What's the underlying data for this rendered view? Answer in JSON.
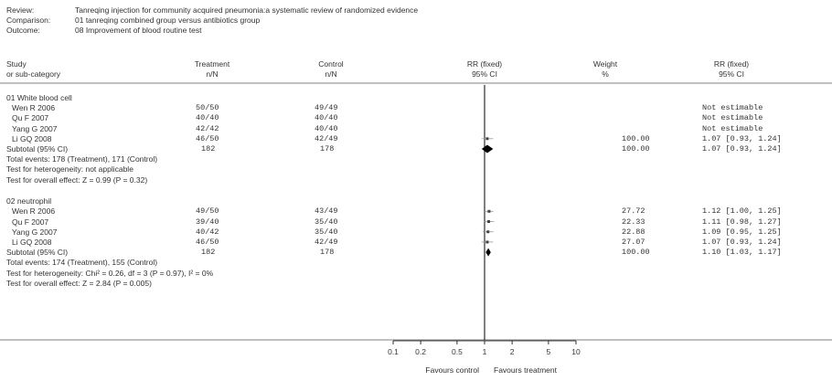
{
  "header": {
    "review_label": "Review:",
    "review_value": "Tanreqing injection for community acquired pneumonia:a systematic review of randomized evidence",
    "comparison_label": "Comparison:",
    "comparison_value": "01 tanreqing combined group versus antibiotics group",
    "outcome_label": "Outcome:",
    "outcome_value": "08 Improvement of blood routine test"
  },
  "columns": {
    "study_1": "Study",
    "study_2": "or sub-category",
    "treatment_1": "Treatment",
    "treatment_2": "n/N",
    "control_1": "Control",
    "control_2": "n/N",
    "rr_plot_1": "RR (fixed)",
    "rr_plot_2": "95% CI",
    "weight_1": "Weight",
    "weight_2": "%",
    "rr_text_1": "RR (fixed)",
    "rr_text_2": "95% CI"
  },
  "footer": {
    "favours_left": "Favours control",
    "favours_right": "Favours treatment"
  },
  "chart_data": {
    "type": "forest",
    "scale": "log",
    "xlim": [
      0.1,
      10
    ],
    "null_value": 1,
    "x_ticks": [
      {
        "value": 0.1,
        "label": "0.1"
      },
      {
        "value": 0.2,
        "label": "0.2"
      },
      {
        "value": 0.5,
        "label": "0.5"
      },
      {
        "value": 1,
        "label": "1"
      },
      {
        "value": 2,
        "label": "2"
      },
      {
        "value": 5,
        "label": "5"
      },
      {
        "value": 10,
        "label": "10"
      }
    ],
    "groups": [
      {
        "title": "01 White blood cell",
        "studies": [
          {
            "study": "Wen R 2006",
            "treatment": "50/50",
            "control": "49/49",
            "weight": "",
            "ci_text": "Not estimable",
            "rr": null,
            "lo": null,
            "hi": null
          },
          {
            "study": "Qu F 2007",
            "treatment": "40/40",
            "control": "40/40",
            "weight": "",
            "ci_text": "Not estimable",
            "rr": null,
            "lo": null,
            "hi": null
          },
          {
            "study": "Yang G 2007",
            "treatment": "42/42",
            "control": "40/40",
            "weight": "",
            "ci_text": "Not estimable",
            "rr": null,
            "lo": null,
            "hi": null
          },
          {
            "study": "Li GQ 2008",
            "treatment": "46/50",
            "control": "42/49",
            "weight": "100.00",
            "ci_text": "1.07 [0.93, 1.24]",
            "rr": 1.07,
            "lo": 0.93,
            "hi": 1.24
          }
        ],
        "subtotal": {
          "label": "Subtotal (95% CI)",
          "treatment": "182",
          "control": "178",
          "weight": "100.00",
          "ci_text": "1.07 [0.93, 1.24]",
          "rr": 1.07,
          "lo": 0.93,
          "hi": 1.24
        },
        "total_events": "Total events: 178 (Treatment), 171 (Control)",
        "heterogeneity": "Test for heterogeneity: not applicable",
        "overall": "Test for overall effect: Z = 0.99 (P = 0.32)"
      },
      {
        "title": "02 neutrophil",
        "studies": [
          {
            "study": "Wen R 2006",
            "treatment": "49/50",
            "control": "43/49",
            "weight": "27.72",
            "ci_text": "1.12 [1.00, 1.25]",
            "rr": 1.12,
            "lo": 1.0,
            "hi": 1.25
          },
          {
            "study": "Qu F 2007",
            "treatment": "39/40",
            "control": "35/40",
            "weight": "22.33",
            "ci_text": "1.11 [0.98, 1.27]",
            "rr": 1.11,
            "lo": 0.98,
            "hi": 1.27
          },
          {
            "study": "Yang G 2007",
            "treatment": "40/42",
            "control": "35/40",
            "weight": "22.88",
            "ci_text": "1.09 [0.95, 1.25]",
            "rr": 1.09,
            "lo": 0.95,
            "hi": 1.25
          },
          {
            "study": "Li GQ 2008",
            "treatment": "46/50",
            "control": "42/49",
            "weight": "27.07",
            "ci_text": "1.07 [0.93, 1.24]",
            "rr": 1.07,
            "lo": 0.93,
            "hi": 1.24
          }
        ],
        "subtotal": {
          "label": "Subtotal (95% CI)",
          "treatment": "182",
          "control": "178",
          "weight": "100.00",
          "ci_text": "1.10 [1.03, 1.17]",
          "rr": 1.1,
          "lo": 1.03,
          "hi": 1.17
        },
        "total_events": "Total events: 174 (Treatment), 155 (Control)",
        "heterogeneity": "Test for heterogeneity: Chi² = 0.26, df = 3 (P = 0.97), I² = 0%",
        "overall": "Test for overall effect: Z = 2.84 (P = 0.005)"
      }
    ]
  }
}
